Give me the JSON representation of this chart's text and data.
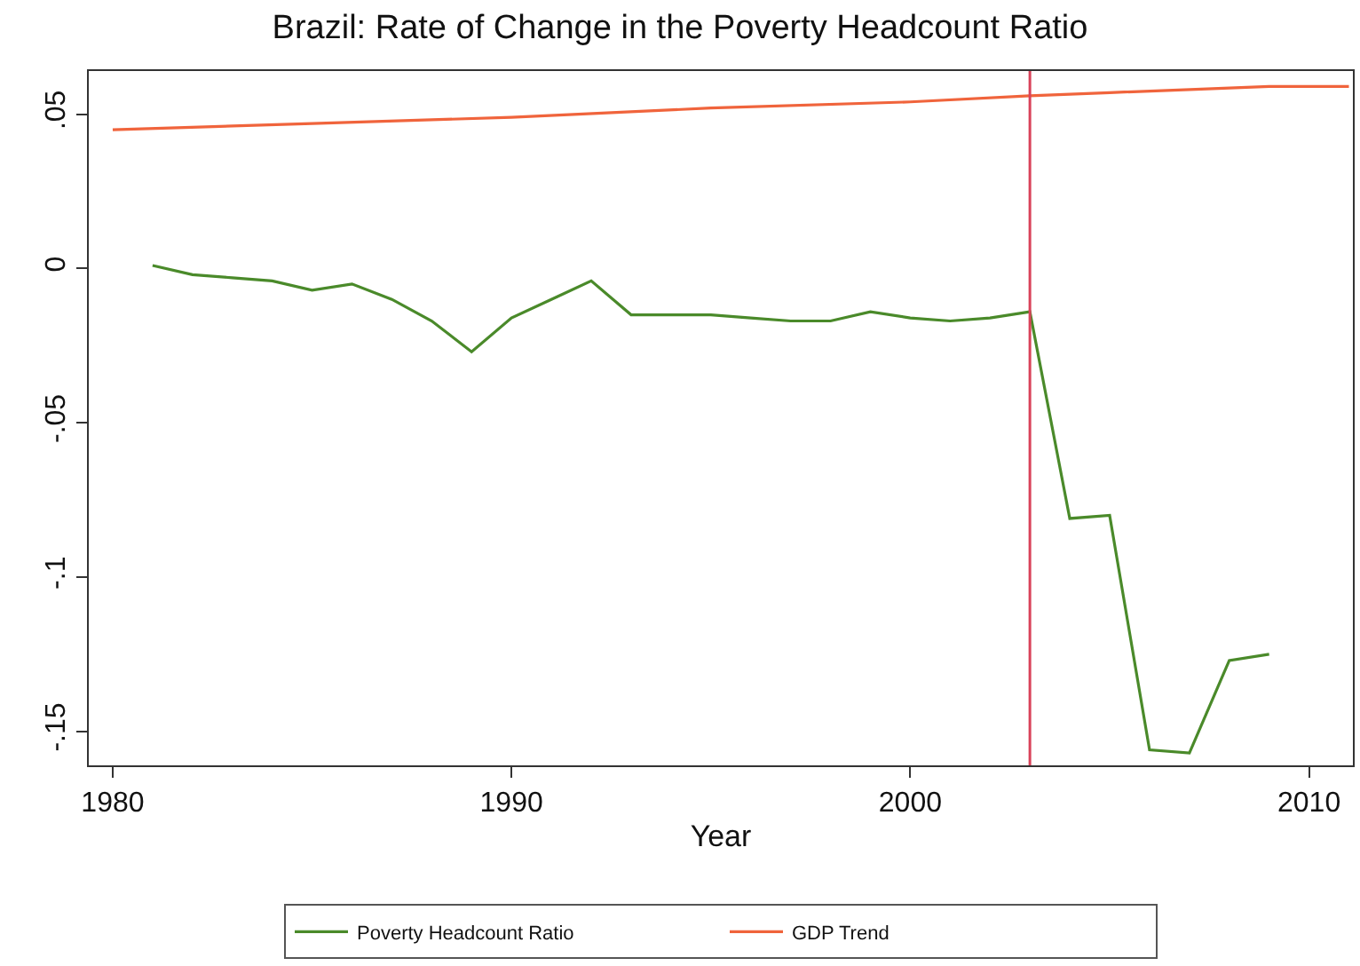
{
  "chart_data": {
    "type": "line",
    "title": "Brazil: Rate of Change in the Poverty Headcount Ratio",
    "xlabel": "Year",
    "series": [
      {
        "name": "Poverty Headcount Ratio",
        "color": "#4a8a2a",
        "x": [
          1981,
          1982,
          1983,
          1984,
          1985,
          1986,
          1987,
          1988,
          1989,
          1990,
          1991,
          1992,
          1993,
          1994,
          1995,
          1996,
          1997,
          1998,
          1999,
          2000,
          2001,
          2002,
          2003,
          2004,
          2005,
          2006,
          2007,
          2008,
          2009
        ],
        "values": [
          0.001,
          -0.002,
          -0.003,
          -0.004,
          -0.007,
          -0.005,
          -0.01,
          -0.017,
          -0.027,
          -0.016,
          -0.01,
          -0.004,
          -0.015,
          -0.015,
          -0.015,
          -0.016,
          -0.017,
          -0.017,
          -0.014,
          -0.016,
          -0.017,
          -0.016,
          -0.014,
          -0.081,
          -0.08,
          -0.156,
          -0.157,
          -0.127,
          -0.125
        ]
      },
      {
        "name": "GDP Trend",
        "color": "#f0643c",
        "x": [
          1980,
          1985,
          1990,
          1995,
          2000,
          2003,
          2005,
          2009,
          2011
        ],
        "values": [
          0.045,
          0.047,
          0.049,
          0.052,
          0.054,
          0.056,
          0.057,
          0.059,
          0.059
        ]
      }
    ],
    "xlim": [
      1979.4,
      2011.1
    ],
    "xticks": [
      1980,
      1990,
      2000,
      2010
    ],
    "ylim": [
      -0.161,
      0.064
    ],
    "yticks": [
      {
        "value": -0.15,
        "label": "-.15"
      },
      {
        "value": -0.1,
        "label": "-.1"
      },
      {
        "value": -0.05,
        "label": "-.05"
      },
      0,
      {
        "value": 0.05,
        "label": ".05"
      }
    ],
    "ref_lines": [
      {
        "axis": "x",
        "value": 2003,
        "color": "#d9435a"
      }
    ],
    "grid": false,
    "legend": "bottom",
    "line_style": "solid",
    "marker": "none"
  }
}
